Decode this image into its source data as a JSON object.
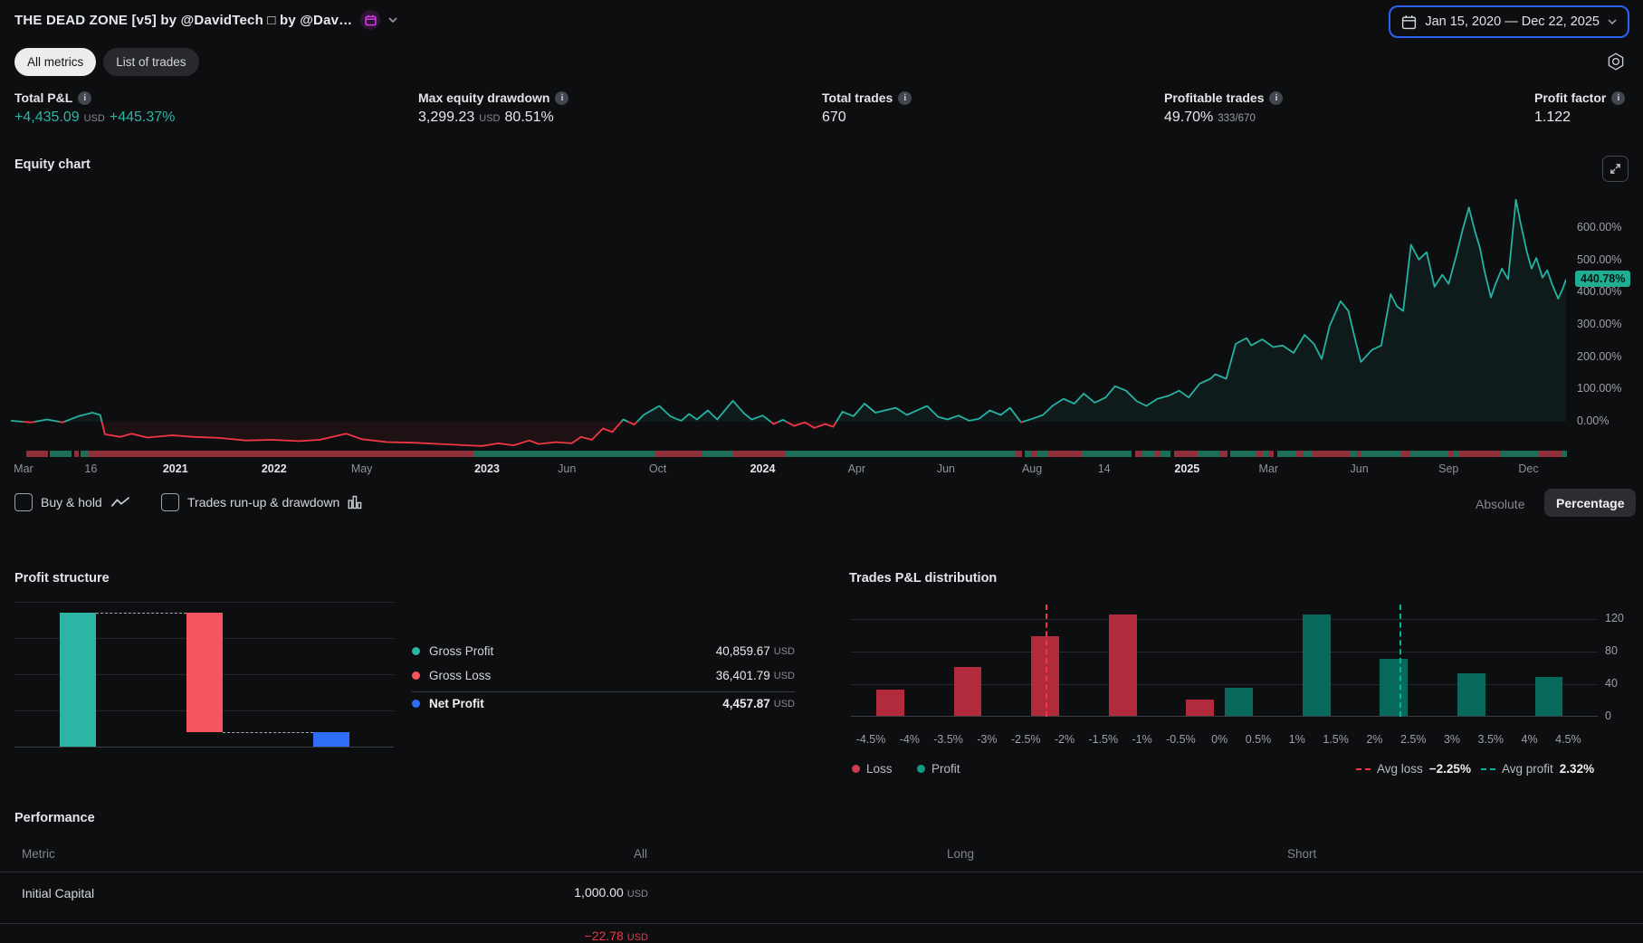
{
  "header": {
    "title": "THE DEAD ZONE [v5] by @DavidTech □ by @Dav…",
    "date_range": "Jan 15, 2020 — Dec 22, 2025"
  },
  "tabs": {
    "all_metrics": "All metrics",
    "list_of_trades": "List of trades"
  },
  "units": {
    "usd": "USD"
  },
  "metrics": [
    {
      "label": "Total P&L",
      "value": "+4,435.09",
      "unit": "USD",
      "extra": "+445.37%"
    },
    {
      "label": "Max equity drawdown",
      "value": "3,299.23",
      "unit": "USD",
      "extra": "80.51%"
    },
    {
      "label": "Total trades",
      "value": "670"
    },
    {
      "label": "Profitable trades",
      "value": "49.70%",
      "extra": "333/670"
    },
    {
      "label": "Profit factor",
      "value": "1.122"
    }
  ],
  "controls": {
    "buy_hold": "Buy & hold",
    "trades_runup": "Trades run-up & drawdown",
    "absolute": "Absolute",
    "percentage": "Percentage"
  },
  "colors": {
    "teal_line": "#25b2a3",
    "red_line": "#f23645",
    "strip_green": "#1d6e58",
    "strip_red": "#8f2f3a",
    "bar_green": "#07695b",
    "bar_red": "#b22b3d",
    "ps_teal": "#2cb5a5",
    "ps_red": "#f5555f",
    "ps_blue": "#2e6df5",
    "avg_loss": "#f23645",
    "avg_profit": "#00b5a0",
    "accent_blue": "#2d62f5",
    "badge_teal": "#1fae92"
  },
  "chart_data": [
    {
      "id": "equity",
      "type": "area",
      "title": "Equity chart",
      "unit": "%",
      "badge": "440.78%",
      "last_value": 440.78,
      "ylim": [
        -90,
        700
      ],
      "y_ticks": [
        600,
        500,
        400,
        300,
        200,
        100,
        0
      ],
      "y_tick_labels": [
        "600.00%",
        "500.00%",
        "400.00%",
        "300.00%",
        "200.00%",
        "100.00%",
        "0.00%"
      ],
      "x_axis": [
        {
          "t": "Mar",
          "x": 1.5
        },
        {
          "t": "16",
          "x": 5.8
        },
        {
          "t": "2021",
          "x": 11.2,
          "bold": true
        },
        {
          "t": "2022",
          "x": 17.5,
          "bold": true
        },
        {
          "t": "May",
          "x": 23.1
        },
        {
          "t": "2023",
          "x": 31.1,
          "bold": true
        },
        {
          "t": "Jun",
          "x": 36.2
        },
        {
          "t": "Oct",
          "x": 42.0
        },
        {
          "t": "2024",
          "x": 48.7,
          "bold": true
        },
        {
          "t": "Apr",
          "x": 54.7
        },
        {
          "t": "Jun",
          "x": 60.4
        },
        {
          "t": "Aug",
          "x": 65.9
        },
        {
          "t": "14",
          "x": 70.5
        },
        {
          "t": "2025",
          "x": 75.8,
          "bold": true
        },
        {
          "t": "Mar",
          "x": 81.0
        },
        {
          "t": "Jun",
          "x": 86.8
        },
        {
          "t": "Sep",
          "x": 92.5
        },
        {
          "t": "Dec",
          "x": 97.6
        }
      ],
      "points": [
        [
          0.7,
          3
        ],
        [
          2,
          -2
        ],
        [
          3,
          7
        ],
        [
          4,
          -2
        ],
        [
          5,
          17
        ],
        [
          5.9,
          28
        ],
        [
          6.4,
          21
        ],
        [
          6.7,
          -39
        ],
        [
          7.7,
          -47
        ],
        [
          8.4,
          -37
        ],
        [
          9.4,
          -49
        ],
        [
          11,
          -42
        ],
        [
          12.4,
          -47
        ],
        [
          14,
          -50
        ],
        [
          15.7,
          -58
        ],
        [
          17.4,
          -56
        ],
        [
          19.1,
          -60
        ],
        [
          20.4,
          -56
        ],
        [
          22.1,
          -37
        ],
        [
          23.1,
          -54
        ],
        [
          24.7,
          -63
        ],
        [
          26.4,
          -65
        ],
        [
          28.1,
          -69
        ],
        [
          29.8,
          -73
        ],
        [
          30.8,
          -75
        ],
        [
          31.8,
          -67
        ],
        [
          32.8,
          -73
        ],
        [
          33.8,
          -58
        ],
        [
          34.4,
          -69
        ],
        [
          35.5,
          -63
        ],
        [
          36.5,
          -67
        ],
        [
          37.1,
          -47
        ],
        [
          37.8,
          -56
        ],
        [
          38.5,
          -21
        ],
        [
          39.1,
          -32
        ],
        [
          39.8,
          7
        ],
        [
          40.5,
          -9
        ],
        [
          41.1,
          21
        ],
        [
          42.1,
          49
        ],
        [
          42.8,
          17
        ],
        [
          43.5,
          3
        ],
        [
          44,
          24
        ],
        [
          44.5,
          7
        ],
        [
          45.2,
          35
        ],
        [
          45.8,
          7
        ],
        [
          46.8,
          65
        ],
        [
          47.5,
          26
        ],
        [
          48,
          7
        ],
        [
          48.7,
          19
        ],
        [
          49.4,
          -7
        ],
        [
          50,
          6
        ],
        [
          50.7,
          -13
        ],
        [
          51.4,
          -2
        ],
        [
          52,
          -19
        ],
        [
          52.7,
          -7
        ],
        [
          53.2,
          -16
        ],
        [
          53.8,
          31
        ],
        [
          54.5,
          17
        ],
        [
          55.2,
          56
        ],
        [
          55.9,
          28
        ],
        [
          56.5,
          35
        ],
        [
          57.2,
          43
        ],
        [
          57.9,
          21
        ],
        [
          58.5,
          34
        ],
        [
          59.2,
          49
        ],
        [
          59.9,
          15
        ],
        [
          60.5,
          7
        ],
        [
          61.2,
          19
        ],
        [
          61.9,
          3
        ],
        [
          62.5,
          9
        ],
        [
          63.2,
          35
        ],
        [
          63.9,
          21
        ],
        [
          64.5,
          43
        ],
        [
          65.2,
          -2
        ],
        [
          65.9,
          9
        ],
        [
          66.6,
          21
        ],
        [
          67.2,
          49
        ],
        [
          67.9,
          71
        ],
        [
          68.6,
          56
        ],
        [
          69.2,
          87
        ],
        [
          69.9,
          59
        ],
        [
          70.6,
          75
        ],
        [
          71.2,
          110
        ],
        [
          71.9,
          96
        ],
        [
          72.6,
          63
        ],
        [
          73.2,
          49
        ],
        [
          73.9,
          71
        ],
        [
          74.6,
          80
        ],
        [
          75.3,
          96
        ],
        [
          75.9,
          75
        ],
        [
          76.6,
          118
        ],
        [
          77.3,
          133
        ],
        [
          77.6,
          147
        ],
        [
          78.3,
          133
        ],
        [
          78.9,
          241
        ],
        [
          79.6,
          259
        ],
        [
          79.9,
          236
        ],
        [
          80.6,
          255
        ],
        [
          81.3,
          231
        ],
        [
          81.9,
          236
        ],
        [
          82.6,
          213
        ],
        [
          83.3,
          269
        ],
        [
          83.9,
          241
        ],
        [
          84.4,
          194
        ],
        [
          84.9,
          297
        ],
        [
          85.6,
          373
        ],
        [
          86.1,
          343
        ],
        [
          86.6,
          241
        ],
        [
          86.9,
          185
        ],
        [
          87.6,
          222
        ],
        [
          88.2,
          236
        ],
        [
          88.8,
          395
        ],
        [
          89.2,
          357
        ],
        [
          89.6,
          343
        ],
        [
          90.1,
          548
        ],
        [
          90.6,
          502
        ],
        [
          91.1,
          525
        ],
        [
          91.6,
          418
        ],
        [
          92.1,
          455
        ],
        [
          92.5,
          427
        ],
        [
          93,
          516
        ],
        [
          93.4,
          595
        ],
        [
          93.8,
          663
        ],
        [
          94.2,
          586
        ],
        [
          94.5,
          539
        ],
        [
          94.8,
          465
        ],
        [
          95.2,
          385
        ],
        [
          95.5,
          427
        ],
        [
          95.9,
          474
        ],
        [
          96.3,
          441
        ],
        [
          96.8,
          687
        ],
        [
          97.1,
          614
        ],
        [
          97.5,
          525
        ],
        [
          97.8,
          474
        ],
        [
          98.1,
          507
        ],
        [
          98.5,
          446
        ],
        [
          98.8,
          469
        ],
        [
          99.1,
          427
        ],
        [
          99.5,
          381
        ],
        [
          99.8,
          413
        ],
        [
          100,
          441
        ]
      ],
      "trade_strip": [
        [
          "r",
          1.6,
          1.4
        ],
        [
          "g",
          3.1,
          1.4
        ],
        [
          "r",
          4.7,
          0.3
        ],
        [
          "g",
          5.1,
          0.5
        ],
        [
          "r",
          5.6,
          24.6
        ],
        [
          "g",
          30.2,
          11.6
        ],
        [
          "r",
          41.8,
          3.0
        ],
        [
          "g",
          44.8,
          1.9
        ],
        [
          "r",
          46.7,
          3.4
        ],
        [
          "g",
          50.1,
          14.7
        ],
        [
          "r",
          64.8,
          0.4
        ],
        [
          "g",
          65.4,
          0.4
        ],
        [
          "r",
          65.8,
          0.3
        ],
        [
          "g",
          66.1,
          0.7
        ],
        [
          "r",
          66.8,
          2.2
        ],
        [
          "g",
          69.0,
          3.2
        ],
        [
          "r",
          72.4,
          0.5
        ],
        [
          "g",
          72.9,
          0.8
        ],
        [
          "r",
          73.7,
          0.3
        ],
        [
          "g",
          74.0,
          0.7
        ],
        [
          "r",
          74.9,
          1.5
        ],
        [
          "g",
          76.4,
          1.4
        ],
        [
          "r",
          77.8,
          0.5
        ],
        [
          "g",
          78.5,
          1.7
        ],
        [
          "r",
          80.2,
          0.4
        ],
        [
          "g",
          80.6,
          0.3
        ],
        [
          "r",
          80.9,
          0.4
        ],
        [
          "g",
          81.5,
          1.2
        ],
        [
          "r",
          82.7,
          0.5
        ],
        [
          "g",
          83.2,
          0.5
        ],
        [
          "r",
          83.7,
          2.5
        ],
        [
          "g",
          86.2,
          0.4
        ],
        [
          "r",
          86.6,
          0.3
        ],
        [
          "g",
          86.9,
          2.5
        ],
        [
          "r",
          89.4,
          0.6
        ],
        [
          "g",
          90.0,
          2.4
        ],
        [
          "r",
          92.4,
          0.3
        ],
        [
          "g",
          92.7,
          0.4
        ],
        [
          "r",
          93.1,
          2.6
        ],
        [
          "g",
          95.7,
          2.5
        ],
        [
          "r",
          98.2,
          1.5
        ],
        [
          "g",
          99.7,
          0.3
        ]
      ]
    },
    {
      "id": "profit_structure",
      "type": "bar",
      "title": "Profit structure",
      "unit": "USD",
      "series": [
        {
          "name": "Gross Profit",
          "value": 40859.67,
          "display": "40,859.67"
        },
        {
          "name": "Gross Loss",
          "value": 36401.79,
          "display": "36,401.79"
        },
        {
          "name": "Net Profit",
          "value": 4457.87,
          "display": "4,457.87"
        }
      ]
    },
    {
      "id": "pl_distribution",
      "type": "bar",
      "title": "Trades P&L distribution",
      "x_ticks": [
        "-4.5%",
        "-4%",
        "-3.5%",
        "-3%",
        "-2.5%",
        "-2%",
        "-1.5%",
        "-1%",
        "-0.5%",
        "0%",
        "0.5%",
        "1%",
        "1.5%",
        "2%",
        "2.5%",
        "3%",
        "3.5%",
        "4%",
        "4.5%"
      ],
      "y_ticks": [
        120,
        80,
        40,
        0
      ],
      "bars": [
        {
          "bin": "-4.5% to -4%",
          "gap": 0,
          "count": 32,
          "kind": "loss"
        },
        {
          "bin": "-3.5% to -3%",
          "gap": 2,
          "count": 60,
          "kind": "loss"
        },
        {
          "bin": "-2.5% to -2%",
          "gap": 4,
          "count": 98,
          "kind": "loss"
        },
        {
          "bin": "-1.5% to -1%",
          "gap": 6,
          "count": 124,
          "kind": "loss"
        },
        {
          "bin": "-0.5% to 0%",
          "gap": 8,
          "count": 20,
          "kind": "loss"
        },
        {
          "bin": "0% to 0.5%",
          "gap": 9,
          "count": 34,
          "kind": "profit"
        },
        {
          "bin": "1% to 1.5%",
          "gap": 11,
          "count": 124,
          "kind": "profit"
        },
        {
          "bin": "2% to 2.5%",
          "gap": 13,
          "count": 70,
          "kind": "profit"
        },
        {
          "bin": "3% to 3.5%",
          "gap": 15,
          "count": 52,
          "kind": "profit"
        },
        {
          "bin": "4% to 4.5%",
          "gap": 17,
          "count": 48,
          "kind": "profit"
        }
      ],
      "legend": {
        "loss": "Loss",
        "profit": "Profit"
      },
      "avg_loss_label": "Avg loss",
      "avg_loss_pct": -2.25,
      "avg_loss_display": "−2.25%",
      "avg_profit_label": "Avg profit",
      "avg_profit_pct": 2.32,
      "avg_profit_display": "2.32%"
    }
  ],
  "performance": {
    "title": "Performance",
    "columns": [
      "Metric",
      "All",
      "Long",
      "Short"
    ],
    "rows": [
      {
        "metric": "Initial Capital",
        "all": "1,000.00",
        "unit": "USD"
      },
      {
        "metric": "",
        "all": "−22.78",
        "unit": "USD",
        "negative": true
      }
    ]
  }
}
